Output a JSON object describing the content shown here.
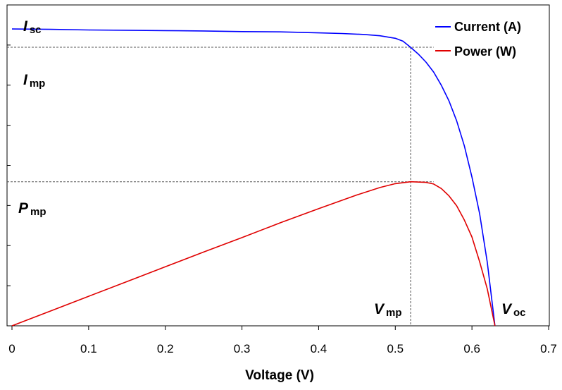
{
  "chart_data": {
    "type": "line",
    "title": "",
    "xlabel": "Voltage (V)",
    "ylabel": "",
    "xlim": [
      0,
      0.7
    ],
    "x_ticks": [
      "0",
      "0.1",
      "0.2",
      "0.3",
      "0.4",
      "0.5",
      "0.6",
      "0.7"
    ],
    "y_tick_count": 8,
    "grid": false,
    "legend_position": "top-right",
    "series": [
      {
        "name": "Current (A)",
        "color": "#0000ff",
        "points": [
          [
            0.0,
            0.925
          ],
          [
            0.05,
            0.924
          ],
          [
            0.1,
            0.922
          ],
          [
            0.15,
            0.921
          ],
          [
            0.2,
            0.92
          ],
          [
            0.25,
            0.919
          ],
          [
            0.3,
            0.917
          ],
          [
            0.35,
            0.916
          ],
          [
            0.4,
            0.913
          ],
          [
            0.43,
            0.911
          ],
          [
            0.46,
            0.908
          ],
          [
            0.48,
            0.904
          ],
          [
            0.5,
            0.896
          ],
          [
            0.51,
            0.887
          ],
          [
            0.52,
            0.868
          ],
          [
            0.53,
            0.847
          ],
          [
            0.54,
            0.822
          ],
          [
            0.55,
            0.791
          ],
          [
            0.56,
            0.75
          ],
          [
            0.57,
            0.701
          ],
          [
            0.58,
            0.639
          ],
          [
            0.59,
            0.561
          ],
          [
            0.6,
            0.464
          ],
          [
            0.61,
            0.35
          ],
          [
            0.62,
            0.198
          ],
          [
            0.63,
            0.0
          ]
        ]
      },
      {
        "name": "Power (W)",
        "color": "#e00000",
        "points": [
          [
            0.0,
            0.0
          ],
          [
            0.05,
            0.046
          ],
          [
            0.1,
            0.092
          ],
          [
            0.15,
            0.138
          ],
          [
            0.2,
            0.184
          ],
          [
            0.25,
            0.23
          ],
          [
            0.3,
            0.275
          ],
          [
            0.35,
            0.321
          ],
          [
            0.4,
            0.365
          ],
          [
            0.45,
            0.408
          ],
          [
            0.48,
            0.431
          ],
          [
            0.5,
            0.443
          ],
          [
            0.52,
            0.449
          ],
          [
            0.54,
            0.447
          ],
          [
            0.55,
            0.442
          ],
          [
            0.56,
            0.428
          ],
          [
            0.57,
            0.405
          ],
          [
            0.58,
            0.374
          ],
          [
            0.59,
            0.33
          ],
          [
            0.6,
            0.277
          ],
          [
            0.61,
            0.2
          ],
          [
            0.62,
            0.115
          ],
          [
            0.63,
            0.0
          ]
        ]
      }
    ],
    "reference_lines": [
      {
        "type": "vertical",
        "x": 0.52
      },
      {
        "type": "horizontal",
        "y": 0.868,
        "x_end": 0.55
      },
      {
        "type": "horizontal",
        "y": 0.449,
        "x_end": 0.55
      }
    ],
    "annotations": [
      {
        "symbol": "I",
        "sub": "sc"
      },
      {
        "symbol": "I",
        "sub": "mp"
      },
      {
        "symbol": "P",
        "sub": "mp"
      },
      {
        "symbol": "V",
        "sub": "mp"
      },
      {
        "symbol": "V",
        "sub": "oc"
      }
    ]
  }
}
